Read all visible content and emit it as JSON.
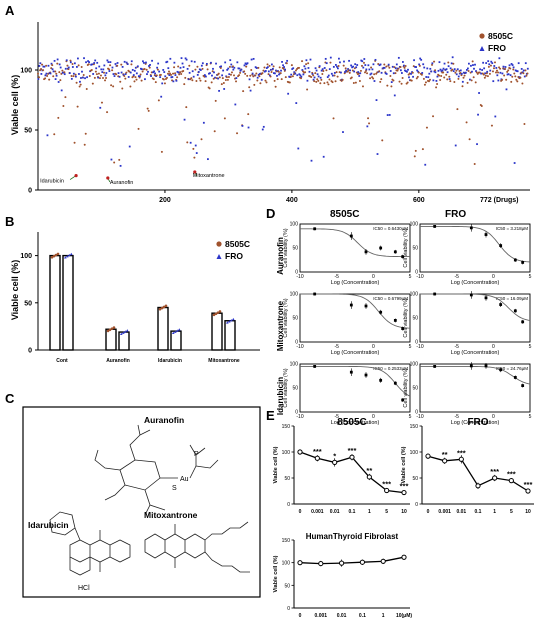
{
  "colors": {
    "c8505": "#a0522d",
    "fro": "#2b35c9",
    "axis": "#000000"
  },
  "panelA": {
    "letter": "A",
    "ylabel": "Viable cell (%)",
    "xlabel_last": "772 (Drugs)",
    "chart_data": {
      "type": "scatter",
      "ylabel": "Viable cell (%)",
      "xlim": [
        0,
        772
      ],
      "ylim": [
        0,
        140
      ],
      "xticks": [
        200,
        400,
        600
      ],
      "yticks": [
        0,
        50,
        100
      ],
      "legend_position": "top-right",
      "series": [
        {
          "name": "8505C"
        },
        {
          "name": "FRO"
        }
      ],
      "annotations": [
        {
          "text": "Idarubicin",
          "x": 60,
          "y": 12
        },
        {
          "text": "Auranofin",
          "x": 110,
          "y": 10
        },
        {
          "text": "Mitoxantrone",
          "x": 247,
          "y": 15
        }
      ]
    }
  },
  "panelB": {
    "letter": "B",
    "ylabel": "Viable cell (%)",
    "chart_data": {
      "type": "bar",
      "categories": [
        "Cont",
        "Auranofin",
        "Idarubicin",
        "Mitoxantrone"
      ],
      "ylim": [
        0,
        125
      ],
      "yticks": [
        0,
        50,
        100
      ],
      "legend_position": "top-right",
      "series": [
        {
          "name": "8505C",
          "values": [
            100,
            22,
            45,
            39
          ]
        },
        {
          "name": "FRO",
          "values": [
            100,
            19,
            20,
            31
          ]
        }
      ]
    }
  },
  "panelC": {
    "letter": "C",
    "auranofin": "Auranofin",
    "idarubicin": "Idarubicin",
    "mitoxantrone": "Mitoxantrone",
    "hcl": "HCl",
    "au": "Au",
    "p": "P",
    "s": "S"
  },
  "panelD": {
    "letter": "D",
    "col1": "8505C",
    "col2": "FRO",
    "row_labels": [
      "Auranofin",
      "Mitoxantrone",
      "Idarubicin"
    ],
    "xlabel": "Log (Concentration)",
    "ylabel": "Cell viability (%)",
    "xticks": [
      -10,
      -5,
      0,
      5
    ],
    "yticks": [
      0,
      50,
      100
    ],
    "ic50": [
      [
        "IC50 = 0.6430μM",
        "IC50 = 3.218μM"
      ],
      [
        "IC50 = 0.6799μM",
        "IC50 = 16.09μM"
      ],
      [
        "IC50 = 0.2533μM",
        "IC50 = 24.76μM"
      ]
    ],
    "chart_data": [
      {
        "type": "line",
        "title": "8505C Auranofin",
        "x": [
          -8,
          -3,
          -1,
          1,
          3,
          4
        ],
        "y": [
          90,
          75,
          42,
          50,
          42,
          32
        ],
        "ylim": [
          0,
          100
        ],
        "xlim": [
          -10,
          5
        ]
      },
      {
        "type": "line",
        "title": "FRO Auranofin",
        "x": [
          -8,
          -3,
          -1,
          1,
          3,
          4
        ],
        "y": [
          95,
          92,
          78,
          55,
          25,
          20
        ],
        "ylim": [
          0,
          100
        ],
        "xlim": [
          -10,
          5
        ]
      },
      {
        "type": "line",
        "title": "8505C Mitoxantrone",
        "x": [
          -8,
          -3,
          -1,
          1,
          3,
          4
        ],
        "y": [
          100,
          77,
          75,
          62,
          45,
          28
        ],
        "ylim": [
          0,
          100
        ],
        "xlim": [
          -10,
          5
        ]
      },
      {
        "type": "line",
        "title": "FRO Mitoxantrone",
        "x": [
          -8,
          -3,
          -1,
          1,
          3,
          4
        ],
        "y": [
          100,
          98,
          92,
          78,
          65,
          42
        ],
        "ylim": [
          0,
          100
        ],
        "xlim": [
          -10,
          5
        ]
      },
      {
        "type": "line",
        "title": "8505C Idarubicin",
        "x": [
          -8,
          -3,
          -1,
          1,
          3,
          4
        ],
        "y": [
          95,
          83,
          77,
          66,
          60,
          25
        ],
        "ylim": [
          0,
          100
        ],
        "xlim": [
          -10,
          5
        ]
      },
      {
        "type": "line",
        "title": "FRO Idarubicin",
        "x": [
          -8,
          -3,
          -1,
          1,
          3,
          4
        ],
        "y": [
          95,
          96,
          96,
          88,
          72,
          55
        ],
        "ylim": [
          0,
          100
        ],
        "xlim": [
          -10,
          5
        ]
      }
    ]
  },
  "panelE": {
    "letter": "E",
    "ylabel": "Viable cell (%)",
    "unit": "(μM)",
    "categories": [
      "0",
      "0.001",
      "0.01",
      "0.1",
      "1",
      "5",
      "10"
    ],
    "chart_data": [
      {
        "type": "line",
        "title": "8505C",
        "categories": [
          "0",
          "0.001",
          "0.01",
          "0.1",
          "1",
          "5",
          "10"
        ],
        "values": [
          100,
          88,
          80,
          90,
          52,
          26,
          22
        ],
        "stars": [
          "",
          "***",
          "*",
          "***",
          "**",
          "***",
          "***"
        ],
        "ylim": [
          0,
          150
        ],
        "yticks": [
          0,
          50,
          100,
          150
        ]
      },
      {
        "type": "line",
        "title": "FRO",
        "categories": [
          "0",
          "0.001",
          "0.01",
          "0.1",
          "1",
          "5",
          "10"
        ],
        "values": [
          92,
          83,
          86,
          35,
          50,
          45,
          25
        ],
        "stars": [
          "",
          "**",
          "***",
          "",
          "***",
          "***",
          "***"
        ],
        "ylim": [
          0,
          150
        ],
        "yticks": [
          0,
          50,
          100,
          150
        ]
      },
      {
        "type": "line",
        "title": "HumanThyroid Fibrolast",
        "categories": [
          "0",
          "0.001",
          "0.01",
          "0.1",
          "1",
          "10"
        ],
        "values": [
          100,
          98,
          99,
          101,
          103,
          112
        ],
        "ylim": [
          0,
          150
        ],
        "yticks": [
          0,
          50,
          100,
          150
        ]
      }
    ]
  }
}
